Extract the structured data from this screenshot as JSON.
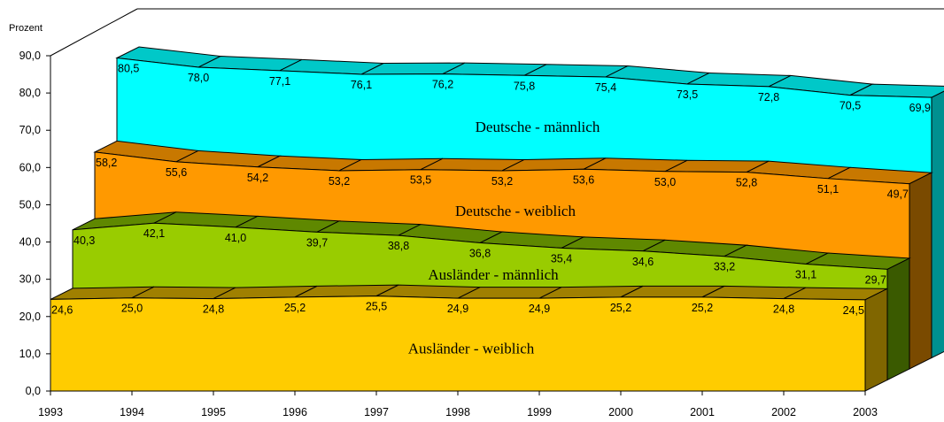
{
  "chart_data": {
    "type": "area",
    "ylabel": "Prozent",
    "ylim": [
      0,
      90
    ],
    "y_ticks": [
      "0,0",
      "10,0",
      "20,0",
      "30,0",
      "40,0",
      "50,0",
      "60,0",
      "70,0",
      "80,0",
      "90,0"
    ],
    "categories": [
      "1993",
      "1994",
      "1995",
      "1996",
      "1997",
      "1998",
      "1999",
      "2000",
      "2001",
      "2002",
      "2003"
    ],
    "series": [
      {
        "name": "Deutsche - männlich",
        "values": [
          80.5,
          78.0,
          77.1,
          76.1,
          76.2,
          75.8,
          75.4,
          73.5,
          72.8,
          70.5,
          69.9
        ],
        "labels": [
          "80,5",
          "78,0",
          "77,1",
          "76,1",
          "76,2",
          "75,8",
          "75,4",
          "73,5",
          "72,8",
          "70,5",
          "69,9"
        ],
        "color": "#00ffff",
        "top_color": "#00c8c8",
        "side_color": "#009090"
      },
      {
        "name": "Deutsche - weiblich",
        "values": [
          58.2,
          55.6,
          54.2,
          53.2,
          53.5,
          53.2,
          53.6,
          53.0,
          52.8,
          51.1,
          49.7
        ],
        "labels": [
          "58,2",
          "55,6",
          "54,2",
          "53,2",
          "53,5",
          "53,2",
          "53,6",
          "53,0",
          "52,8",
          "51,1",
          "49,7"
        ],
        "color": "#ff9900",
        "top_color": "#c87800",
        "side_color": "#7a4a00"
      },
      {
        "name": "Ausländer - männlich",
        "values": [
          40.3,
          42.1,
          41.0,
          39.7,
          38.8,
          36.8,
          35.4,
          34.6,
          33.2,
          31.1,
          29.7
        ],
        "labels": [
          "40,3",
          "42,1",
          "41,0",
          "39,7",
          "38,8",
          "36,8",
          "35,4",
          "34,6",
          "33,2",
          "31,1",
          "29,7"
        ],
        "color": "#99cc00",
        "top_color": "#5f8800",
        "side_color": "#3a5a00"
      },
      {
        "name": "Ausländer - weiblich",
        "values": [
          24.6,
          25.0,
          24.8,
          25.2,
          25.5,
          24.9,
          24.9,
          25.2,
          25.2,
          24.8,
          24.5
        ],
        "labels": [
          "24,6",
          "25,0",
          "24,8",
          "25,2",
          "25,5",
          "24,9",
          "24,9",
          "25,2",
          "25,2",
          "24,8",
          "24,5"
        ],
        "color": "#ffcc00",
        "top_color": "#a08000",
        "side_color": "#806600"
      }
    ]
  }
}
